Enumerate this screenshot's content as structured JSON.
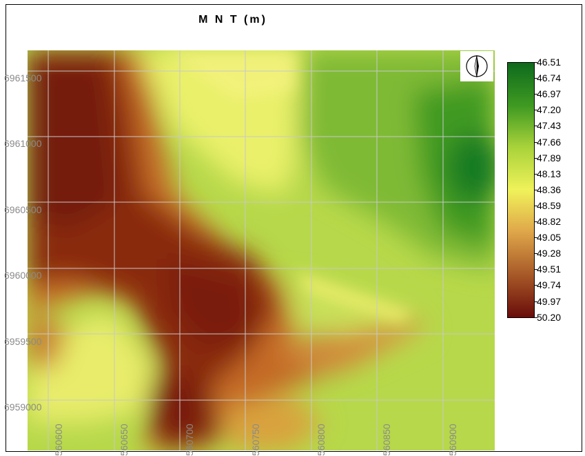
{
  "title": "M N T (m)",
  "map": {
    "grid_y_labels": [
      "6961500",
      "6961000",
      "6960500",
      "6960000",
      "6959500",
      "6959000"
    ],
    "grid_x_labels": [
      "560600",
      "560650",
      "560700",
      "560750",
      "560800",
      "560850",
      "560900"
    ],
    "colors": {
      "high": "#6a0c0a",
      "mid": "#f0f25a",
      "low": "#0e6a1c",
      "grid": "#c8c8c8",
      "label": "#8a8a8a"
    }
  },
  "north_arrow": {
    "icon": "north-arrow-icon"
  },
  "legend": {
    "values": [
      "46.51",
      "46.74",
      "46.97",
      "47.20",
      "47.43",
      "47.66",
      "47.89",
      "48.13",
      "48.36",
      "48.59",
      "48.82",
      "49.05",
      "49.28",
      "49.51",
      "49.74",
      "49.97",
      "50.20"
    ]
  }
}
